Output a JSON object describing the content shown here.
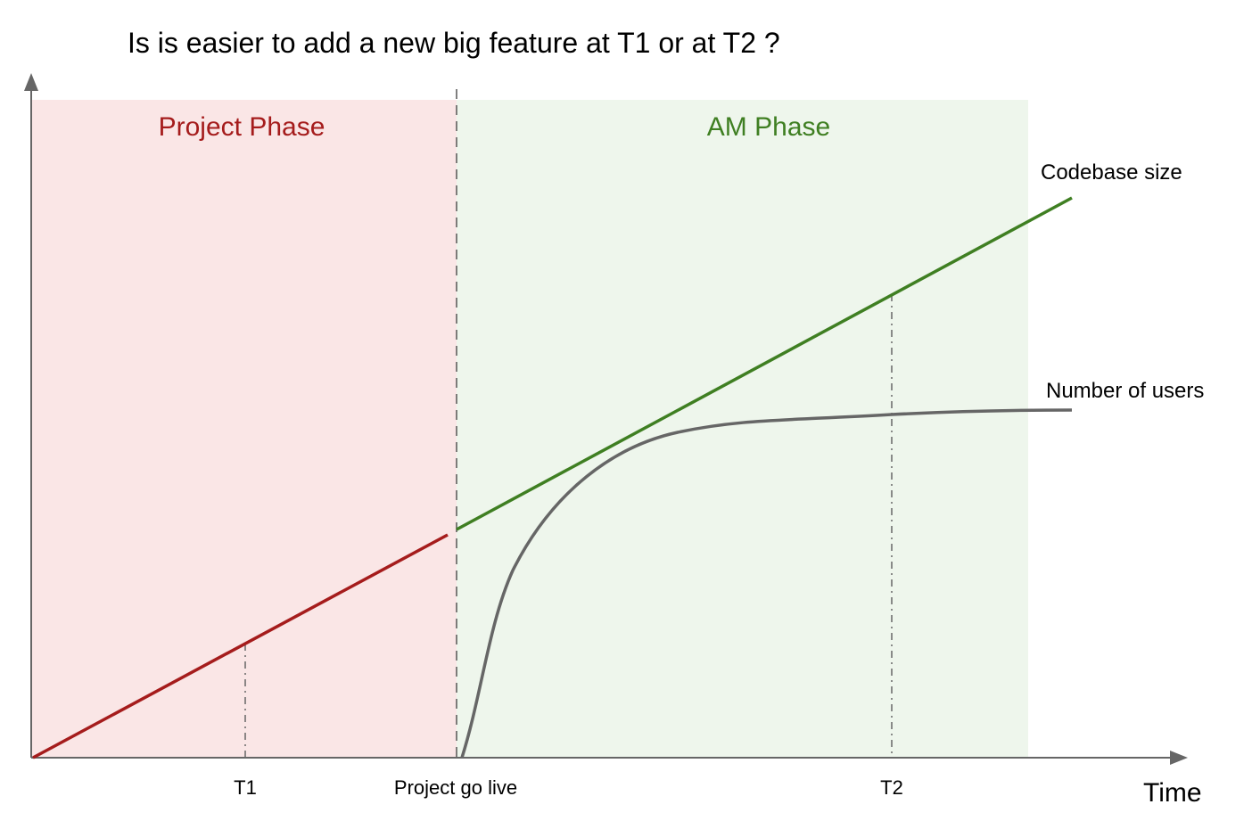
{
  "title": "Is is easier to add a new big feature at T1 or at T2 ?",
  "phases": {
    "project": {
      "label": "Project Phase",
      "background": "#fae6e6",
      "color": "#a51c1c"
    },
    "am": {
      "label": "AM Phase",
      "background": "#eef6ec",
      "color": "#3f7f22"
    }
  },
  "curves": {
    "codebase": {
      "label": "Codebase size",
      "project_color": "#a51c1c",
      "am_color": "#3f7f22"
    },
    "users": {
      "label": "Number of users",
      "color": "#666666"
    }
  },
  "markers": {
    "t1": "T1",
    "go_live": "Project go live",
    "t2": "T2"
  },
  "axes": {
    "x_label": "Time",
    "color": "#666666"
  }
}
